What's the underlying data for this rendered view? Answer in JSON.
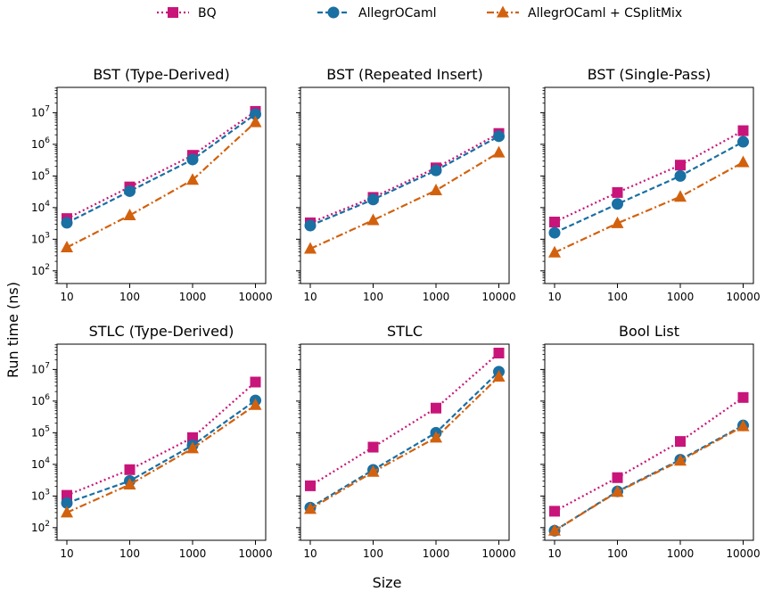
{
  "figure": {
    "ylabel": "Run time (ns)",
    "xlabel": "Size"
  },
  "series_styles": [
    {
      "name": "BQ",
      "color": "#c8157a",
      "dash": "dotted",
      "marker": "square"
    },
    {
      "name": "AllegrOCaml",
      "color": "#1a6fa3",
      "dash": "dashed",
      "marker": "circle"
    },
    {
      "name": "AllegrOCaml + CSplitMix",
      "color": "#d2610e",
      "dash": "dashdot",
      "marker": "triangle"
    }
  ],
  "chart_data": [
    {
      "type": "line",
      "title": "BST (Type-Derived)",
      "y_scale": "log",
      "categories": [
        "10",
        "100",
        "1000",
        "10000"
      ],
      "series": [
        {
          "name": "BQ",
          "values": [
            4500,
            45000,
            450000,
            11000000
          ]
        },
        {
          "name": "AllegrOCaml",
          "values": [
            3300,
            33000,
            330000,
            9000000
          ]
        },
        {
          "name": "AllegrOCaml + CSplitMix",
          "values": [
            550,
            5700,
            75000,
            5000000
          ]
        }
      ]
    },
    {
      "type": "line",
      "title": "BST (Repeated Insert)",
      "y_scale": "log",
      "categories": [
        "10",
        "100",
        "1000",
        "10000"
      ],
      "series": [
        {
          "name": "BQ",
          "values": [
            3300,
            21000,
            180000,
            2200000
          ]
        },
        {
          "name": "AllegrOCaml",
          "values": [
            2700,
            18000,
            150000,
            1800000
          ]
        },
        {
          "name": "AllegrOCaml + CSplitMix",
          "values": [
            500,
            4000,
            35000,
            550000
          ]
        }
      ]
    },
    {
      "type": "line",
      "title": "BST (Single-Pass)",
      "y_scale": "log",
      "categories": [
        "10",
        "100",
        "1000",
        "10000"
      ],
      "series": [
        {
          "name": "BQ",
          "values": [
            3500,
            30000,
            220000,
            2700000
          ]
        },
        {
          "name": "AllegrOCaml",
          "values": [
            1600,
            13000,
            100000,
            1200000
          ]
        },
        {
          "name": "AllegrOCaml + CSplitMix",
          "values": [
            380,
            3200,
            22000,
            270000
          ]
        }
      ]
    },
    {
      "type": "line",
      "title": "STLC (Type-Derived)",
      "y_scale": "log",
      "categories": [
        "10",
        "100",
        "1000",
        "10000"
      ],
      "series": [
        {
          "name": "BQ",
          "values": [
            1050,
            6800,
            70000,
            4000000
          ]
        },
        {
          "name": "AllegrOCaml",
          "values": [
            600,
            3000,
            40000,
            1050000
          ]
        },
        {
          "name": "AllegrOCaml + CSplitMix",
          "values": [
            300,
            2300,
            32000,
            750000
          ]
        }
      ]
    },
    {
      "type": "line",
      "title": "STLC",
      "y_scale": "log",
      "categories": [
        "10",
        "100",
        "1000",
        "10000"
      ],
      "series": [
        {
          "name": "BQ",
          "values": [
            2100,
            35000,
            600000,
            33000000
          ]
        },
        {
          "name": "AllegrOCaml",
          "values": [
            430,
            6700,
            100000,
            8500000
          ]
        },
        {
          "name": "AllegrOCaml + CSplitMix",
          "values": [
            390,
            5800,
            70000,
            5900000
          ]
        }
      ]
    },
    {
      "type": "line",
      "title": "Bool List",
      "y_scale": "log",
      "categories": [
        "10",
        "100",
        "1000",
        "10000"
      ],
      "series": [
        {
          "name": "BQ",
          "values": [
            330,
            3800,
            53000,
            1300000
          ]
        },
        {
          "name": "AllegrOCaml",
          "values": [
            80,
            1400,
            14000,
            170000
          ]
        },
        {
          "name": "AllegrOCaml + CSplitMix",
          "values": [
            80,
            1350,
            13000,
            160000
          ]
        }
      ]
    }
  ],
  "y_ticks": [
    {
      "exp": 2,
      "label_base": "10",
      "label_exp": "2"
    },
    {
      "exp": 3,
      "label_base": "10",
      "label_exp": "3"
    },
    {
      "exp": 4,
      "label_base": "10",
      "label_exp": "4"
    },
    {
      "exp": 5,
      "label_base": "10",
      "label_exp": "5"
    },
    {
      "exp": 6,
      "label_base": "10",
      "label_exp": "6"
    },
    {
      "exp": 7,
      "label_base": "10",
      "label_exp": "7"
    }
  ]
}
